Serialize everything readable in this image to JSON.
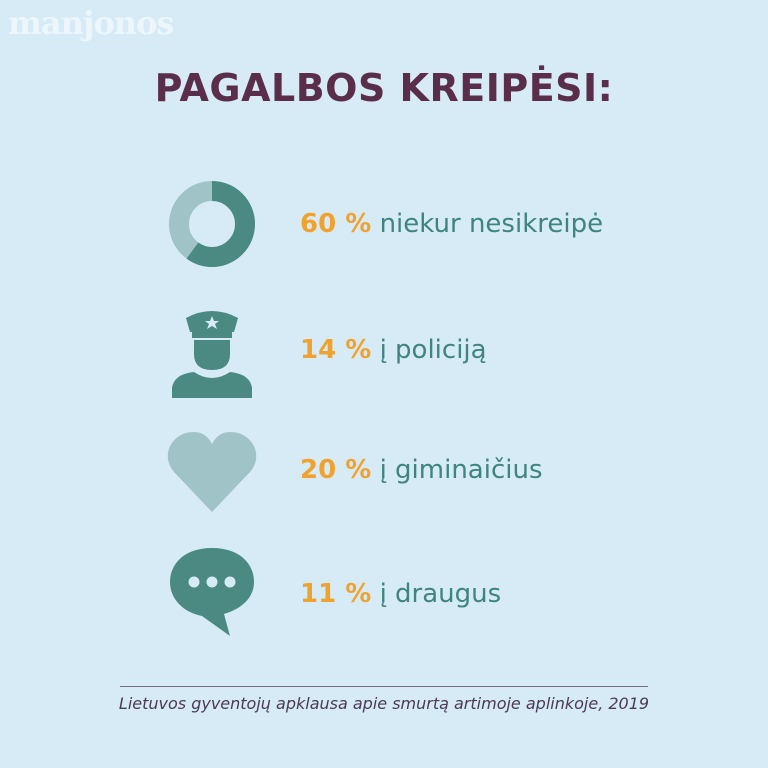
{
  "watermark": "manjonos",
  "title": "PAGALBOS KREIPĖSI:",
  "items": [
    {
      "percent": "60 %",
      "label": "niekur nesikreipė",
      "icon": "donut-chart-icon",
      "value": 60
    },
    {
      "percent": "14 %",
      "label": "į policiją",
      "icon": "police-officer-icon"
    },
    {
      "percent": "20 %",
      "label": "į giminaičius",
      "icon": "heart-icon"
    },
    {
      "percent": "11 %",
      "label": "į draugus",
      "icon": "speech-bubble-icon"
    }
  ],
  "source": "Lietuvos gyventojų apklausa apie smurtą artimoje aplinkoje, 2019",
  "colors": {
    "background": "#d7ebf6",
    "title": "#5a2e4a",
    "percent": "#f0a22e",
    "label": "#3d857e",
    "icon_dark": "#4a8a83",
    "icon_light": "#9fc3c7"
  }
}
